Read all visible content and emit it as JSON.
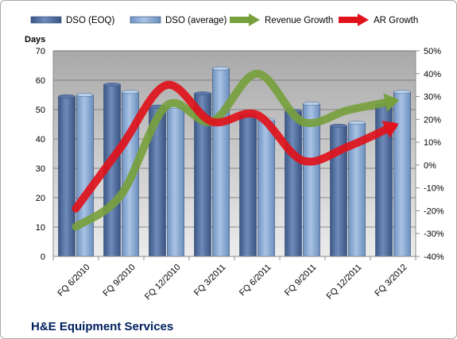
{
  "chart_data": {
    "type": "bar",
    "title": "H&E Equipment Services",
    "ylabel": "Days",
    "y2label": "",
    "categories": [
      "FQ 6/2010",
      "FQ 9/2010",
      "FQ 12/2010",
      "FQ 3/2011",
      "FQ 6/2011",
      "FQ 9/2011",
      "FQ 12/2011",
      "FQ 3/2012"
    ],
    "series": [
      {
        "name": "DSO (EOQ)",
        "kind": "bar",
        "axis": "left",
        "color": "#4f6b9a",
        "values": [
          54.5,
          58.5,
          51,
          55.5,
          48,
          49.5,
          44.5,
          51.5
        ]
      },
      {
        "name": "DSO (average)",
        "kind": "bar",
        "axis": "left",
        "color": "#7ea2cf",
        "values": [
          55,
          56,
          51,
          64,
          46.5,
          52,
          45.5,
          56
        ]
      },
      {
        "name": "Revenue Growth",
        "kind": "line",
        "axis": "right",
        "color": "#77a03d",
        "values": [
          -0.27,
          -0.13,
          0.26,
          0.19,
          0.4,
          0.19,
          0.24,
          0.28
        ]
      },
      {
        "name": "AR Growth",
        "kind": "line",
        "axis": "right",
        "color": "#e0121b",
        "values": [
          -0.19,
          0.08,
          0.35,
          0.19,
          0.22,
          0.02,
          0.08,
          0.17
        ]
      }
    ],
    "ylim": [
      0,
      70
    ],
    "yticks": [
      0,
      10,
      20,
      30,
      40,
      50,
      60,
      70
    ],
    "y2lim": [
      -0.4,
      0.5
    ],
    "y2ticks": [
      "-40%",
      "-30%",
      "-20%",
      "-10%",
      "0%",
      "10%",
      "20%",
      "30%",
      "40%",
      "50%"
    ],
    "grid": true,
    "legend_position": "top"
  }
}
